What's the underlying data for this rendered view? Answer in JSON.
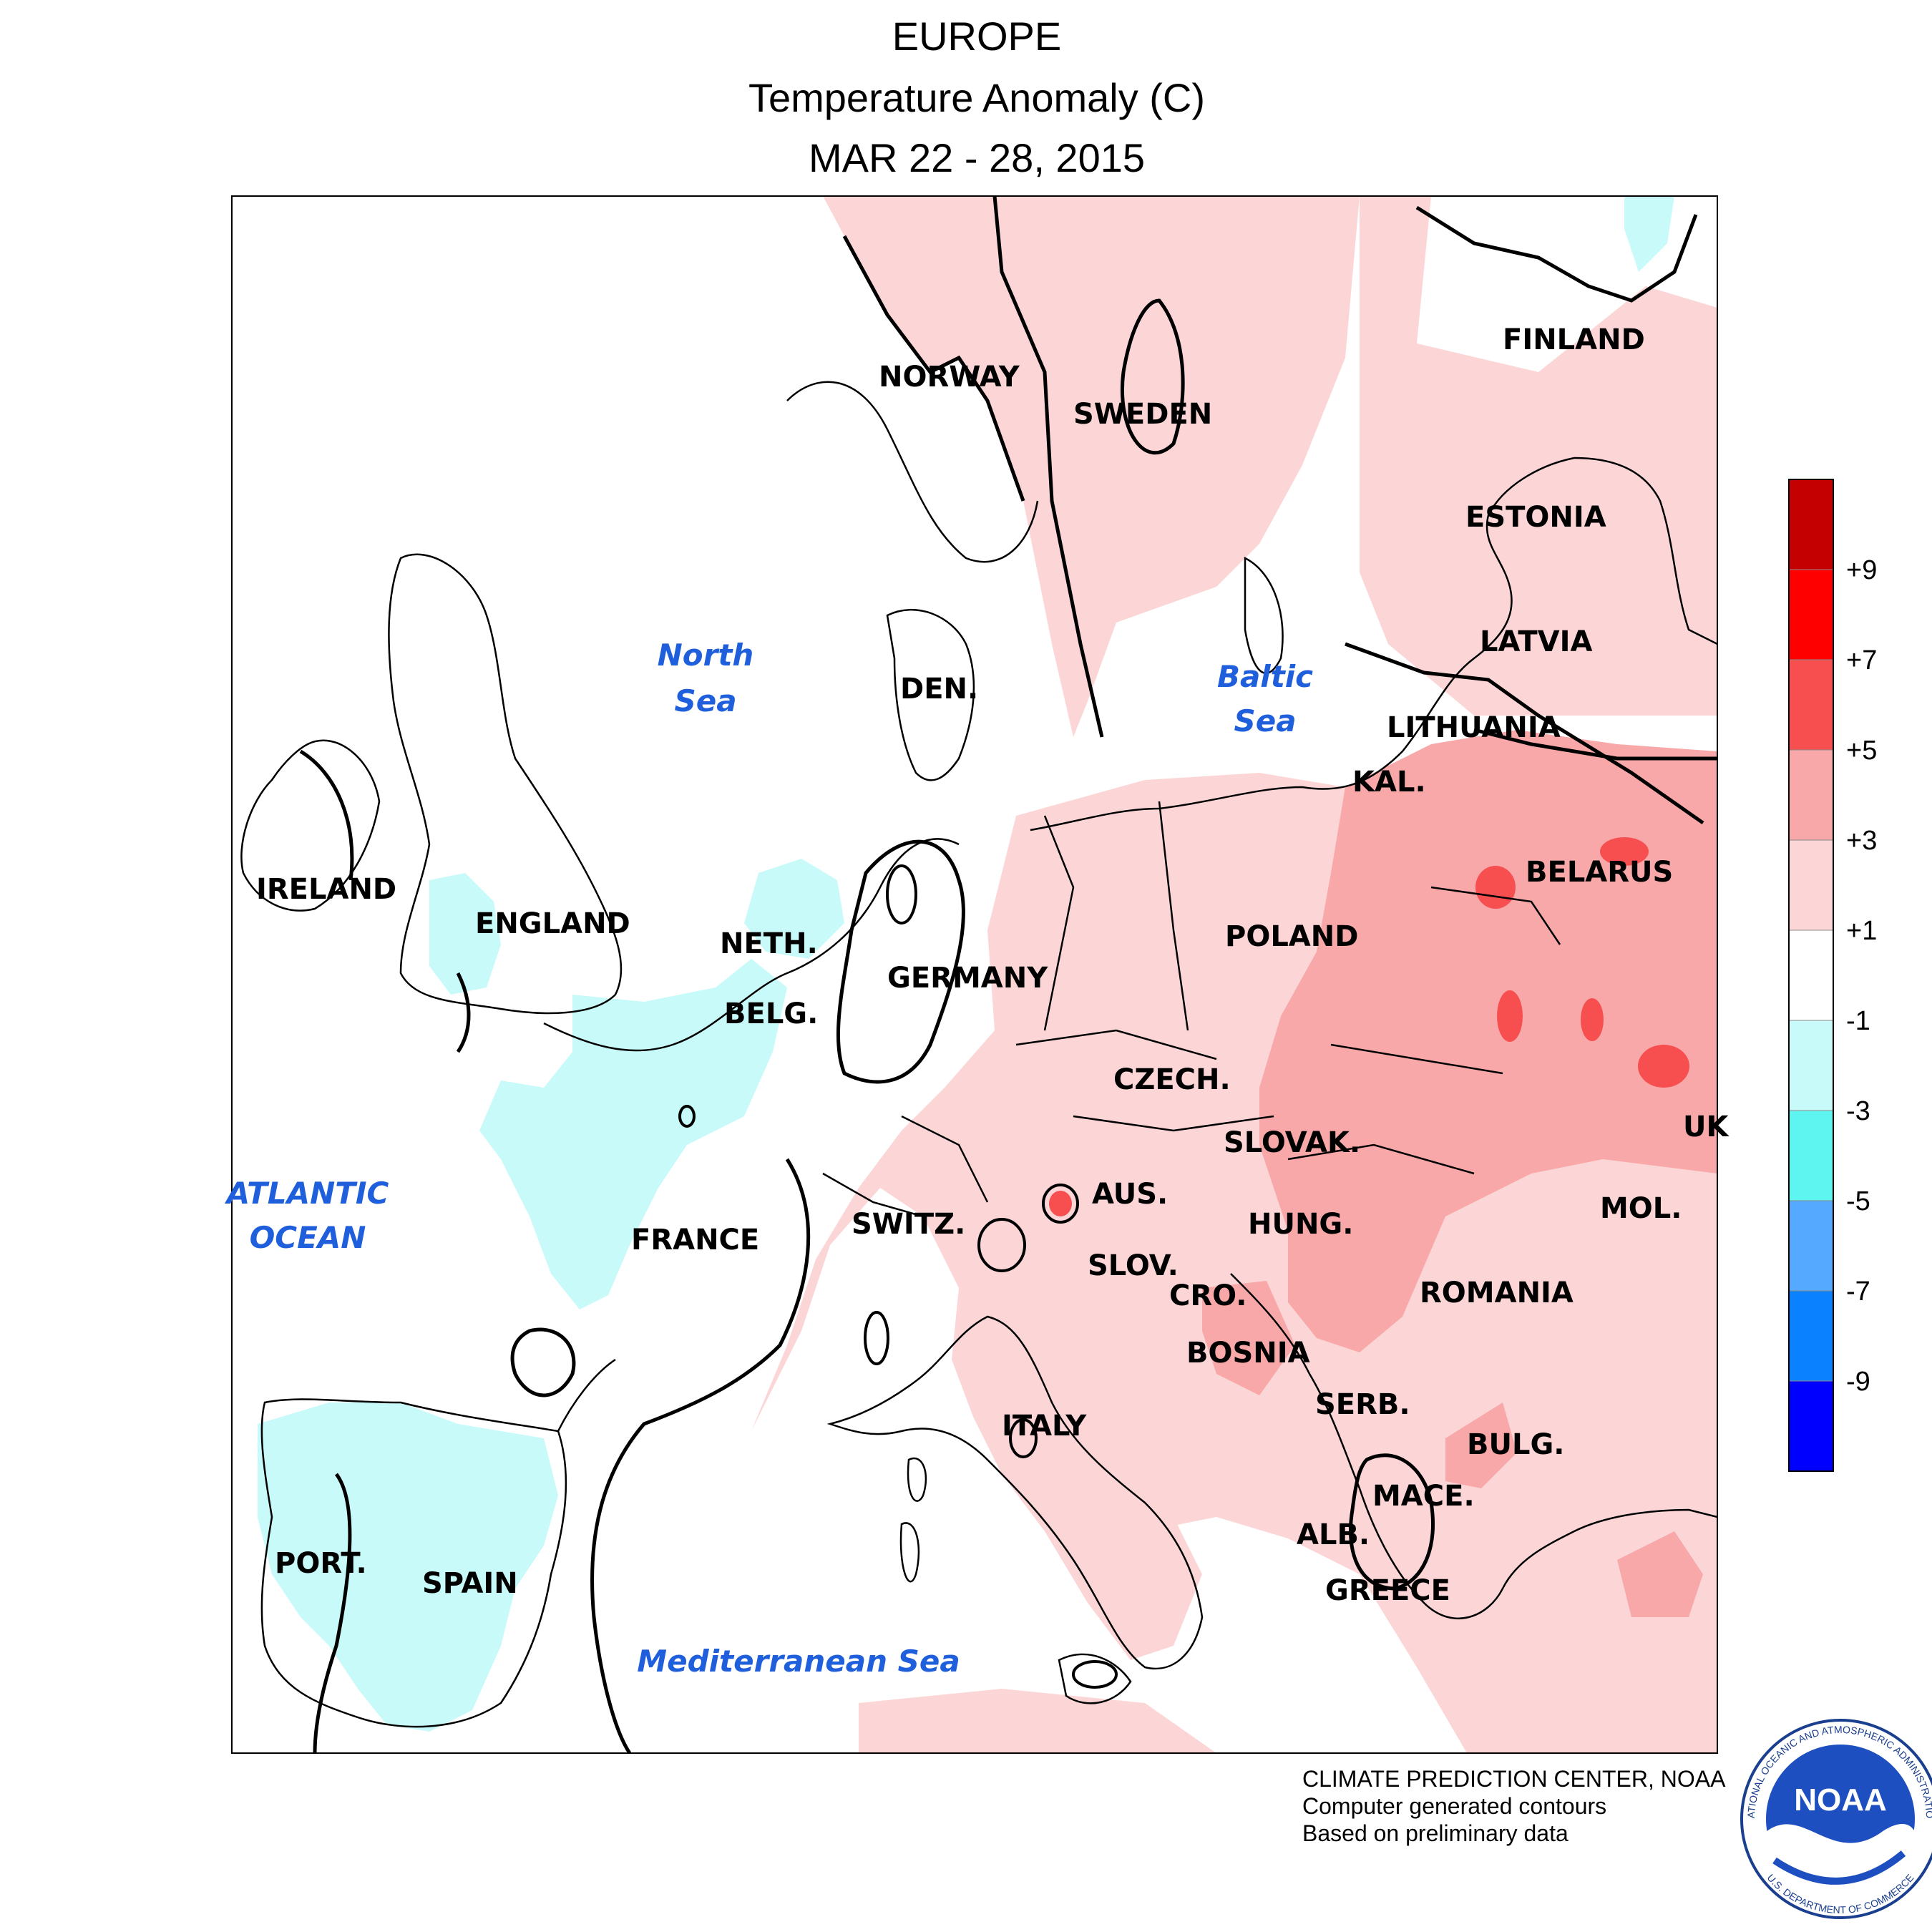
{
  "title": {
    "line1": "EUROPE",
    "line2": "Temperature Anomaly (C)",
    "line3": "MAR 22 - 28, 2015"
  },
  "countries": [
    {
      "label": "FINLAND"
    },
    {
      "label": "NORWAY"
    },
    {
      "label": "SWEDEN"
    },
    {
      "label": "ESTONIA"
    },
    {
      "label": "LATVIA"
    },
    {
      "label": "LITHUANIA"
    },
    {
      "label": "KAL."
    },
    {
      "label": "DEN."
    },
    {
      "label": "IRELAND"
    },
    {
      "label": "ENGLAND"
    },
    {
      "label": "NETH."
    },
    {
      "label": "BELG."
    },
    {
      "label": "GERMANY"
    },
    {
      "label": "POLAND"
    },
    {
      "label": "BELARUS"
    },
    {
      "label": "CZECH."
    },
    {
      "label": "SLOVAK."
    },
    {
      "label": "UK"
    },
    {
      "label": "AUS."
    },
    {
      "label": "HUNG."
    },
    {
      "label": "MOL."
    },
    {
      "label": "FRANCE"
    },
    {
      "label": "SWITZ."
    },
    {
      "label": "SLOV."
    },
    {
      "label": "CRO."
    },
    {
      "label": "ROMANIA"
    },
    {
      "label": "BOSNIA"
    },
    {
      "label": "SERB."
    },
    {
      "label": "ITALY"
    },
    {
      "label": "BULG."
    },
    {
      "label": "MACE."
    },
    {
      "label": "ALB."
    },
    {
      "label": "GREECE"
    },
    {
      "label": "PORT."
    },
    {
      "label": "SPAIN"
    }
  ],
  "seas": [
    {
      "line1": "North",
      "line2": "Sea"
    },
    {
      "line1": "Baltic",
      "line2": "Sea"
    },
    {
      "line1": "ATLANTIC",
      "line2": "OCEAN"
    },
    {
      "line1": "Mediterranean Sea",
      "line2": ""
    }
  ],
  "legend": {
    "bins": [
      {
        "color": "#c40000"
      },
      {
        "color": "#ff0000"
      },
      {
        "color": "#f74f4f"
      },
      {
        "color": "#f8a8a8"
      },
      {
        "color": "#fcd6d6"
      },
      {
        "color": "#ffffff"
      },
      {
        "color": "#c8fafa"
      },
      {
        "color": "#5ef5f0"
      },
      {
        "color": "#55aaff"
      },
      {
        "color": "#0a82ff"
      },
      {
        "color": "#0000ff"
      }
    ],
    "labels": [
      "+9",
      "+7",
      "+5",
      "+3",
      "+1",
      "-1",
      "-3",
      "-5",
      "-7",
      "-9"
    ]
  },
  "credits": {
    "line1": "CLIMATE PREDICTION CENTER, NOAA",
    "line2": "Computer generated contours",
    "line3": "Based on preliminary data"
  },
  "logo": {
    "text": "NOAA",
    "ring_top": "NATIONAL OCEANIC AND ATMOSPHERIC ADMINISTRATION",
    "ring_bottom": "U.S. DEPARTMENT OF COMMERCE"
  }
}
